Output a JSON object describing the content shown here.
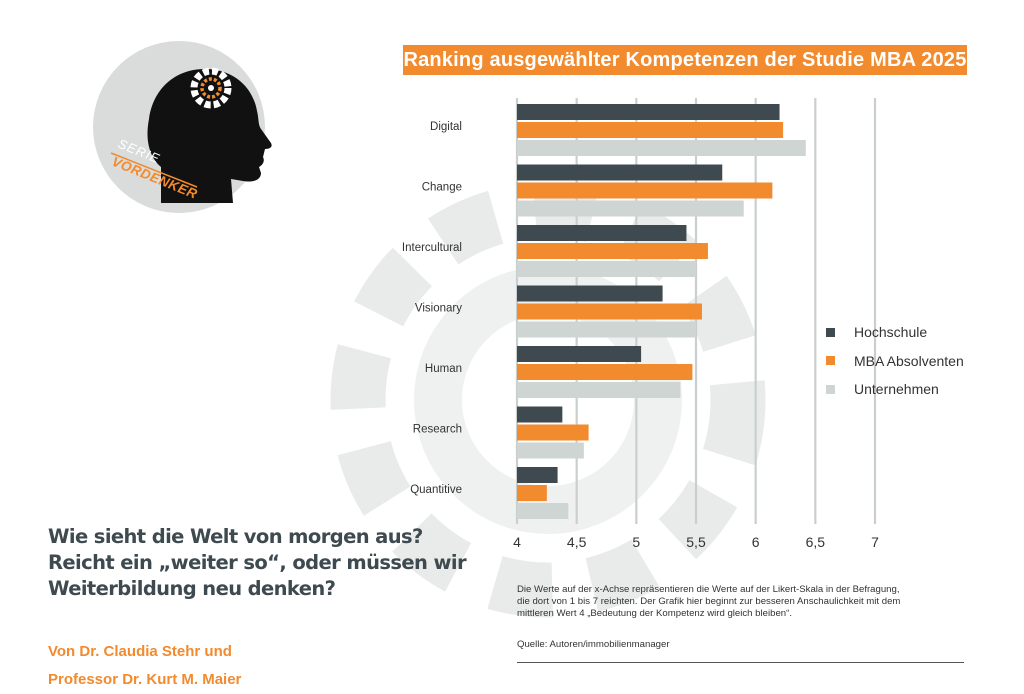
{
  "series_label": {
    "line1": "SERIE",
    "line2": "VORDENKER"
  },
  "headline": {
    "line1": "Wie sieht die Welt von morgen aus?",
    "line2": "Reicht ein „weiter so“, oder müssen wir",
    "line3": "Weiterbildung neu denken?"
  },
  "authors": {
    "line1": "Von Dr. Claudia Stehr und",
    "line2": "Professor Dr. Kurt M. Maier"
  },
  "note": {
    "line1": "Die Werte auf der x-Achse repräsentieren die Werte auf der Likert-Skala in der Befragung,",
    "line2": "die dort von 1 bis 7 reichten. Der Grafik hier beginnt zur besseren Anschaulichkeit mit dem",
    "line3": "mittleren Wert 4 „Bedeutung der Kompetenz wird gleich bleiben“."
  },
  "source": "Quelle: Autoren/immobilienmanager",
  "colors": {
    "hochschule": "#3e4a4f",
    "mba": "#f28a2e",
    "unternehmen": "#cfd5d3",
    "grid": "#c9cfcd"
  },
  "chart_data": {
    "type": "bar",
    "orientation": "horizontal",
    "title": "Ranking ausgewählter Kompetenzen der Studie MBA 2025",
    "categories": [
      "Digital",
      "Change",
      "Intercultural",
      "Visionary",
      "Human",
      "Research",
      "Quantitive"
    ],
    "series": [
      {
        "name": "Hochschule",
        "values": [
          6.2,
          5.72,
          5.42,
          5.22,
          5.04,
          4.38,
          4.34
        ]
      },
      {
        "name": "MBA Absolventen",
        "values": [
          6.23,
          6.14,
          5.6,
          5.55,
          5.47,
          4.6,
          4.25
        ]
      },
      {
        "name": "Unternehmen",
        "values": [
          6.42,
          5.9,
          5.5,
          5.5,
          5.37,
          4.56,
          4.43
        ]
      }
    ],
    "xlim": [
      4,
      7
    ],
    "xticks": [
      "4",
      "4,5",
      "5",
      "5,5",
      "6",
      "6,5",
      "7"
    ],
    "xtick_values": [
      4,
      4.5,
      5,
      5.5,
      6,
      6.5,
      7
    ],
    "grid": true,
    "legend_position": "right"
  }
}
